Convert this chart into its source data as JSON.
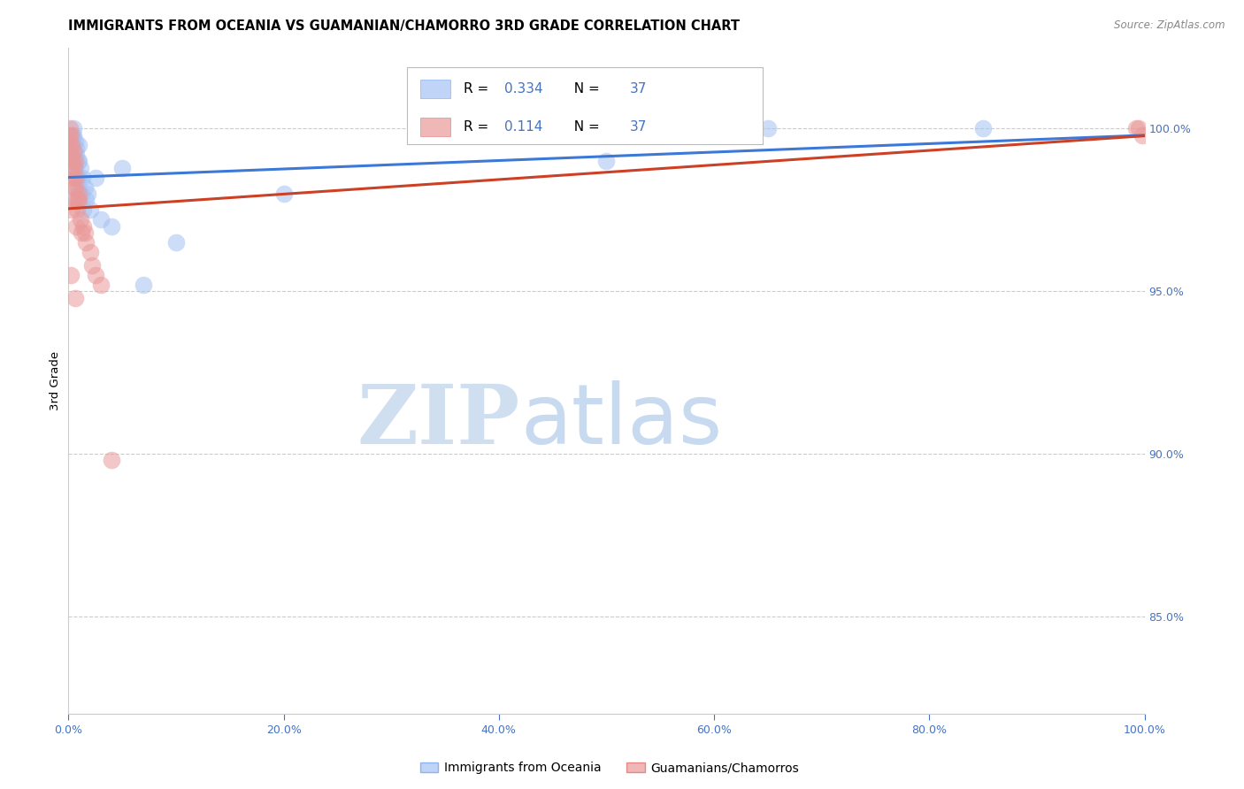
{
  "title": "IMMIGRANTS FROM OCEANIA VS GUAMANIAN/CHAMORRO 3RD GRADE CORRELATION CHART",
  "source_text": "Source: ZipAtlas.com",
  "ylabel": "3rd Grade",
  "right_yticks": [
    85.0,
    90.0,
    95.0,
    100.0
  ],
  "xlim": [
    0.0,
    100.0
  ],
  "ylim": [
    82.0,
    102.5
  ],
  "blue_R": "0.334",
  "pink_R": "0.114",
  "N": "37",
  "blue_color": "#a4c2f4",
  "blue_edge_color": "#6d9eeb",
  "pink_color": "#ea9999",
  "pink_edge_color": "#e06666",
  "blue_line_color": "#3c78d8",
  "pink_line_color": "#cc4125",
  "legend_label_blue": "Immigrants from Oceania",
  "legend_label_pink": "Guamanians/Chamorros",
  "watermark_zip_color": "#d0dff0",
  "watermark_atlas_color": "#c8daf0",
  "grid_color": "#cccccc",
  "tick_color": "#4472c4",
  "blue_x": [
    0.1,
    0.2,
    0.3,
    0.35,
    0.4,
    0.45,
    0.5,
    0.5,
    0.55,
    0.6,
    0.65,
    0.7,
    0.75,
    0.8,
    0.85,
    0.9,
    0.95,
    1.0,
    1.0,
    1.1,
    1.2,
    1.3,
    1.4,
    1.5,
    1.6,
    1.8,
    2.0,
    2.5,
    3.0,
    4.0,
    5.0,
    7.0,
    10.0,
    20.0,
    50.0,
    65.0,
    85.0
  ],
  "blue_y": [
    97.8,
    99.2,
    99.5,
    99.8,
    99.0,
    100.0,
    99.5,
    99.8,
    99.3,
    98.8,
    99.6,
    99.2,
    99.4,
    98.5,
    99.0,
    98.2,
    99.5,
    99.0,
    98.5,
    98.8,
    98.0,
    98.5,
    97.5,
    98.2,
    97.8,
    98.0,
    97.5,
    98.5,
    97.2,
    97.0,
    98.8,
    95.2,
    96.5,
    98.0,
    99.0,
    100.0,
    100.0
  ],
  "pink_x": [
    0.05,
    0.1,
    0.15,
    0.2,
    0.25,
    0.3,
    0.35,
    0.4,
    0.45,
    0.5,
    0.55,
    0.6,
    0.65,
    0.7,
    0.75,
    0.8,
    0.9,
    1.0,
    1.1,
    1.2,
    1.4,
    1.6,
    2.0,
    2.5,
    3.0,
    0.3,
    0.5,
    0.7,
    1.0,
    1.5,
    2.2,
    4.0,
    99.2,
    99.5,
    99.8,
    0.25,
    0.6
  ],
  "pink_y": [
    99.8,
    100.0,
    99.5,
    99.8,
    99.2,
    99.5,
    98.8,
    99.0,
    99.3,
    98.5,
    98.8,
    98.2,
    99.0,
    97.8,
    98.5,
    97.5,
    97.8,
    98.0,
    97.2,
    96.8,
    97.0,
    96.5,
    96.2,
    95.5,
    95.2,
    97.5,
    98.2,
    97.0,
    97.8,
    96.8,
    95.8,
    89.8,
    100.0,
    100.0,
    99.8,
    95.5,
    94.8
  ]
}
